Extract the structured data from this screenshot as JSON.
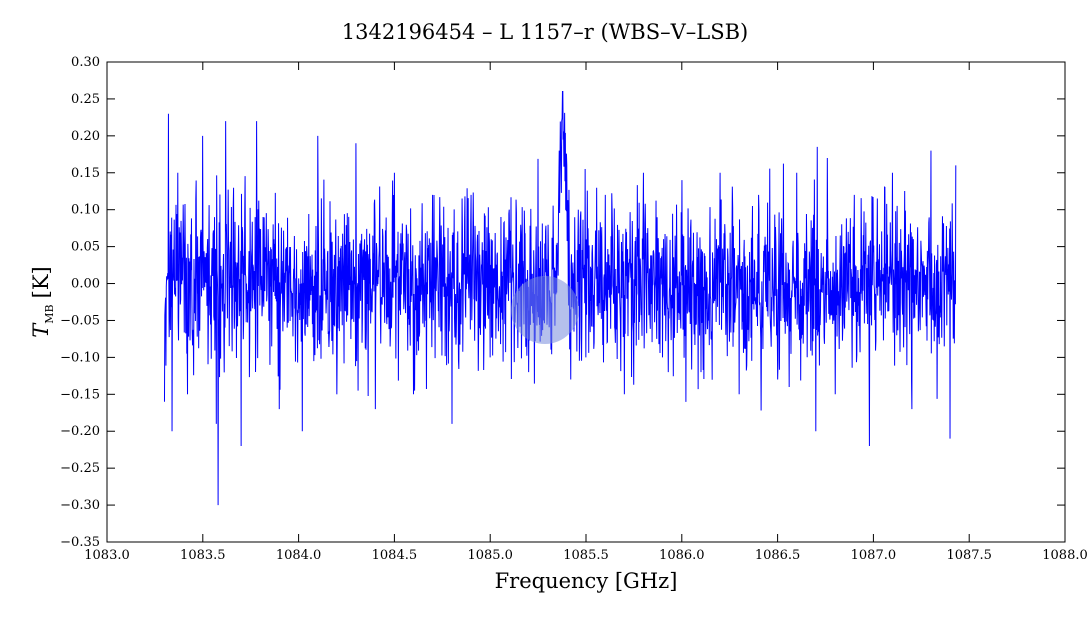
{
  "chart_data": {
    "type": "line",
    "title": "1342196454 – L 1157–r (WBS–V–LSB)",
    "xlabel": "Frequency [GHz]",
    "ylabel_main": "T",
    "ylabel_sub": "MB",
    "ylabel_unit": "[K]",
    "xlim": [
      1083.0,
      1088.0
    ],
    "ylim": [
      -0.35,
      0.3
    ],
    "x_ticks": [
      1083.0,
      1083.5,
      1084.0,
      1084.5,
      1085.0,
      1085.5,
      1086.0,
      1086.5,
      1087.0,
      1087.5,
      1088.0
    ],
    "x_tick_labels": [
      "1083.0",
      "1083.5",
      "1084.0",
      "1084.5",
      "1085.0",
      "1085.5",
      "1086.0",
      "1086.5",
      "1087.0",
      "1087.5",
      "1088.0"
    ],
    "y_ticks": [
      0.3,
      0.25,
      0.2,
      0.15,
      0.1,
      0.05,
      0.0,
      -0.05,
      -0.1,
      -0.15,
      -0.2,
      -0.25,
      -0.3,
      -0.35
    ],
    "y_tick_labels": [
      "0.30",
      "0.25",
      "0.20",
      "0.15",
      "0.10",
      "0.05",
      "0.00",
      "−0.05",
      "−0.10",
      "−0.15",
      "−0.20",
      "−0.25",
      "−0.30",
      "−0.35"
    ],
    "grid": false,
    "legend": "none",
    "series": [
      {
        "color": "#0000ff",
        "x": [
          1083.3,
          1083.32,
          1083.34,
          1083.37,
          1083.42,
          1083.5,
          1083.57,
          1083.58,
          1083.62,
          1083.7,
          1083.78,
          1083.9,
          1084.02,
          1084.1,
          1084.2,
          1084.3,
          1084.4,
          1084.5,
          1084.6,
          1084.7,
          1084.8,
          1084.9,
          1085.0,
          1085.1,
          1085.2,
          1085.28,
          1085.33,
          1085.36,
          1085.38,
          1085.4,
          1085.42,
          1085.46,
          1085.5,
          1085.6,
          1085.7,
          1085.8,
          1085.9,
          1086.0,
          1086.1,
          1086.2,
          1086.3,
          1086.4,
          1086.5,
          1086.6,
          1086.7,
          1086.76,
          1086.8,
          1086.9,
          1086.98,
          1087.1,
          1087.2,
          1087.3,
          1087.4,
          1087.43
        ],
        "y": [
          -0.16,
          0.23,
          -0.2,
          0.15,
          -0.15,
          0.2,
          -0.19,
          -0.3,
          0.22,
          -0.22,
          0.22,
          -0.17,
          -0.2,
          0.2,
          -0.15,
          0.19,
          -0.17,
          0.15,
          -0.15,
          0.12,
          -0.19,
          0.12,
          -0.1,
          0.1,
          -0.12,
          -0.05,
          0.05,
          0.18,
          0.26,
          0.16,
          -0.13,
          0.1,
          -0.1,
          0.12,
          -0.15,
          0.15,
          -0.1,
          0.14,
          -0.12,
          0.15,
          -0.15,
          0.12,
          -0.13,
          0.15,
          -0.2,
          0.17,
          -0.15,
          0.12,
          -0.22,
          0.15,
          -0.17,
          0.18,
          -0.21,
          0.16
        ],
        "noise": {
          "x_start": 1083.3,
          "x_end": 1087.43,
          "samples": 2200,
          "rms": 0.055,
          "line_center": 1085.38,
          "line_peak": 0.19,
          "line_width": 0.018
        }
      }
    ]
  }
}
